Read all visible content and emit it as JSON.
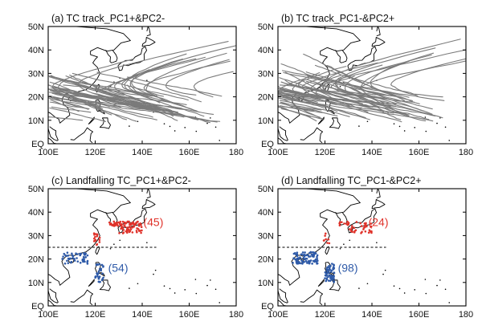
{
  "panels": [
    {
      "id": "a",
      "title": "(a) TC track_PC1+&PC2-",
      "type": "track",
      "track_count": 60,
      "seed": 11
    },
    {
      "id": "b",
      "title": "(b) TC track_PC1-&PC2+",
      "type": "track",
      "track_count": 70,
      "seed": 29
    },
    {
      "id": "c",
      "title": "(c) Landfalling TC_PC1+&PC2-",
      "type": "landfall",
      "north_count": "(45)",
      "south_count": "(54)",
      "divider_lat": 25
    },
    {
      "id": "d",
      "title": "(d) Landfalling TC_PC1-&PC2+",
      "type": "landfall",
      "north_count": "(24)",
      "south_count": "(98)",
      "divider_lat": 25
    }
  ],
  "axes": {
    "lon_ticks": [
      "100E",
      "120E",
      "140E",
      "160E",
      "180"
    ],
    "lat_ticks": [
      "EQ",
      "10N",
      "20N",
      "30N",
      "40N",
      "50N"
    ],
    "lon_range": [
      100,
      180
    ],
    "lat_range": [
      0,
      50
    ]
  },
  "colors": {
    "track": "#7a7a7a",
    "north_landfall": "#e0332b",
    "south_landfall": "#2e5aa8",
    "coast": "#000000"
  }
}
